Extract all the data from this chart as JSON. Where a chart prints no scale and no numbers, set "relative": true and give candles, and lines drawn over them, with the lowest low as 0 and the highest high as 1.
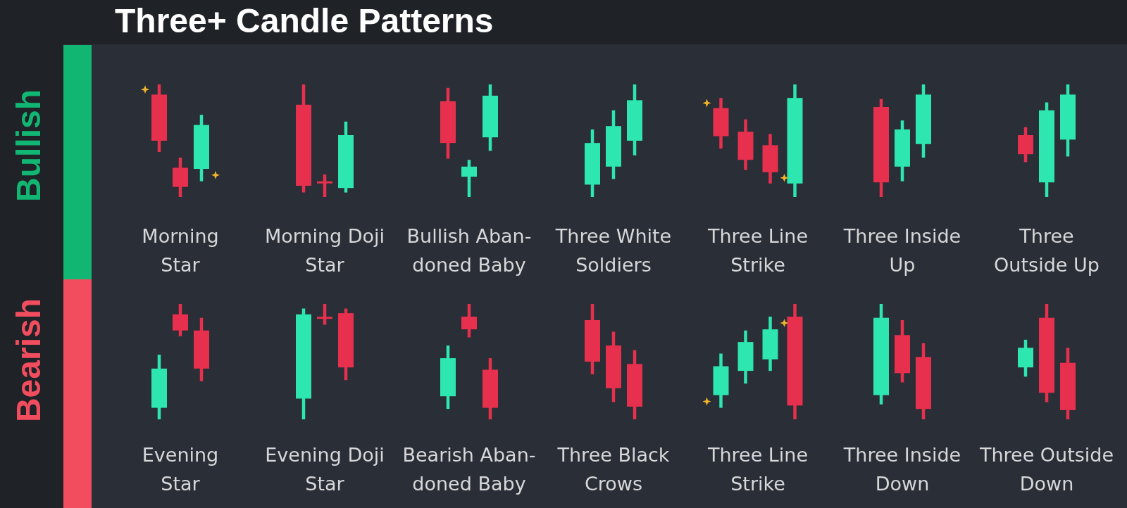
{
  "chart_data": [
    {
      "type": "other",
      "title": "Three+ Candle Patterns",
      "annotations": [
        "Bullish",
        "Bearish"
      ]
    },
    {
      "type": "candlestick",
      "title": "Morning\nStar",
      "relative": true,
      "categories": [
        null,
        null,
        null
      ],
      "ohlc": [
        [
          0.91,
          1,
          0.4,
          0.5
        ],
        [
          0.26,
          0.35,
          0,
          0.09
        ],
        [
          0.25,
          0.73,
          0.14,
          0.64
        ]
      ],
      "colors": [
        "#e6304e",
        "#e6304e",
        "#2de6b0"
      ]
    },
    {
      "type": "candlestick",
      "title": "Morning Doji\nStar",
      "relative": true,
      "categories": [
        null,
        null,
        null
      ],
      "ohlc": [
        [
          0.82,
          1,
          0.04,
          0.1
        ],
        [
          0.13,
          0.2,
          0,
          0.13
        ],
        [
          0.08,
          0.67,
          0.04,
          0.55
        ]
      ],
      "colors": [
        "#e6304e",
        "#e6304e",
        "#2de6b0"
      ]
    },
    {
      "type": "candlestick",
      "title": "Bullish Aban-\ndoned Baby",
      "relative": true,
      "categories": [
        null,
        null,
        null
      ],
      "ohlc": [
        [
          0.85,
          0.97,
          0.34,
          0.48
        ],
        [
          0.18,
          0.33,
          0,
          0.27
        ],
        [
          0.53,
          1,
          0.41,
          0.9
        ]
      ],
      "colors": [
        "#e6304e",
        "#2de6b0",
        "#2de6b0"
      ]
    },
    {
      "type": "candlestick",
      "title": "Three White\nSoldiers",
      "relative": true,
      "categories": [
        null,
        null,
        null
      ],
      "ohlc": [
        [
          0.11,
          0.6,
          0,
          0.48
        ],
        [
          0.27,
          0.77,
          0.16,
          0.63
        ],
        [
          0.5,
          1,
          0.37,
          0.86
        ]
      ],
      "colors": [
        "#2de6b0",
        "#2de6b0",
        "#2de6b0"
      ]
    },
    {
      "type": "candlestick",
      "title": "Three Line\nStrike",
      "relative": true,
      "categories": [
        null,
        null,
        null,
        null
      ],
      "ohlc": [
        [
          0.79,
          0.88,
          0.43,
          0.54
        ],
        [
          0.58,
          0.69,
          0.24,
          0.33
        ],
        [
          0.46,
          0.56,
          0.12,
          0.22
        ],
        [
          0.12,
          1,
          0,
          0.88
        ]
      ],
      "colors": [
        "#e6304e",
        "#e6304e",
        "#e6304e",
        "#2de6b0"
      ]
    },
    {
      "type": "candlestick",
      "title": "Three Inside\nUp",
      "relative": true,
      "categories": [
        null,
        null,
        null
      ],
      "ohlc": [
        [
          0.8,
          0.87,
          0,
          0.13
        ],
        [
          0.27,
          0.68,
          0.14,
          0.6
        ],
        [
          0.47,
          1,
          0.35,
          0.91
        ]
      ],
      "colors": [
        "#e6304e",
        "#2de6b0",
        "#2de6b0"
      ]
    },
    {
      "type": "candlestick",
      "title": "Three\nOutside Up",
      "relative": true,
      "categories": [
        null,
        null,
        null
      ],
      "ohlc": [
        [
          0.55,
          0.62,
          0.31,
          0.38
        ],
        [
          0.13,
          0.84,
          0,
          0.77
        ],
        [
          0.51,
          1,
          0.36,
          0.91
        ]
      ],
      "colors": [
        "#e6304e",
        "#2de6b0",
        "#2de6b0"
      ]
    },
    {
      "type": "candlestick",
      "title": "Evening\nStar",
      "relative": true,
      "categories": [
        null,
        null,
        null
      ],
      "ohlc": [
        [
          0.1,
          0.56,
          0,
          0.44
        ],
        [
          0.91,
          1,
          0.72,
          0.77
        ],
        [
          0.77,
          0.88,
          0.33,
          0.44
        ]
      ],
      "colors": [
        "#2de6b0",
        "#e6304e",
        "#e6304e"
      ]
    },
    {
      "type": "candlestick",
      "title": "Evening Doji\nStar",
      "relative": true,
      "categories": [
        null,
        null,
        null
      ],
      "ohlc": [
        [
          0.18,
          0.96,
          0,
          0.91
        ],
        [
          0.88,
          1,
          0.82,
          0.88
        ],
        [
          0.92,
          0.96,
          0.34,
          0.45
        ]
      ],
      "colors": [
        "#2de6b0",
        "#e6304e",
        "#e6304e"
      ]
    },
    {
      "type": "candlestick",
      "title": "Bearish Aban-\ndoned Baby",
      "relative": true,
      "categories": [
        null,
        null,
        null
      ],
      "ohlc": [
        [
          0.2,
          0.64,
          0.09,
          0.53
        ],
        [
          0.89,
          1,
          0.71,
          0.78
        ],
        [
          0.43,
          0.53,
          0,
          0.1
        ]
      ],
      "colors": [
        "#2de6b0",
        "#e6304e",
        "#e6304e"
      ]
    },
    {
      "type": "candlestick",
      "title": "Three Black\nCrows",
      "relative": true,
      "categories": [
        null,
        null,
        null
      ],
      "ohlc": [
        [
          0.86,
          1,
          0.39,
          0.5
        ],
        [
          0.64,
          0.76,
          0.15,
          0.27
        ],
        [
          0.48,
          0.6,
          0,
          0.11
        ]
      ],
      "colors": [
        "#e6304e",
        "#e6304e",
        "#e6304e"
      ]
    },
    {
      "type": "candlestick",
      "title": "Three Line\nStrike",
      "relative": true,
      "categories": [
        null,
        null,
        null,
        null
      ],
      "ohlc": [
        [
          0.21,
          0.57,
          0.1,
          0.46
        ],
        [
          0.42,
          0.77,
          0.31,
          0.67
        ],
        [
          0.52,
          0.89,
          0.42,
          0.78
        ],
        [
          0.89,
          1,
          0,
          0.12
        ]
      ],
      "colors": [
        "#2de6b0",
        "#2de6b0",
        "#2de6b0",
        "#e6304e"
      ]
    },
    {
      "type": "candlestick",
      "title": "Three Inside\nDown",
      "relative": true,
      "categories": [
        null,
        null,
        null
      ],
      "ohlc": [
        [
          0.21,
          1,
          0.13,
          0.88
        ],
        [
          0.73,
          0.86,
          0.32,
          0.4
        ],
        [
          0.54,
          0.66,
          0,
          0.09
        ]
      ],
      "colors": [
        "#2de6b0",
        "#e6304e",
        "#e6304e"
      ]
    },
    {
      "type": "candlestick",
      "title": "Three Outside\nDown",
      "relative": true,
      "categories": [
        null,
        null,
        null
      ],
      "ohlc": [
        [
          0.45,
          0.69,
          0.37,
          0.62
        ],
        [
          0.88,
          1,
          0.15,
          0.23
        ],
        [
          0.49,
          0.62,
          0,
          0.08
        ]
      ],
      "colors": [
        "#2de6b0",
        "#e6304e",
        "#e6304e"
      ]
    }
  ]
}
